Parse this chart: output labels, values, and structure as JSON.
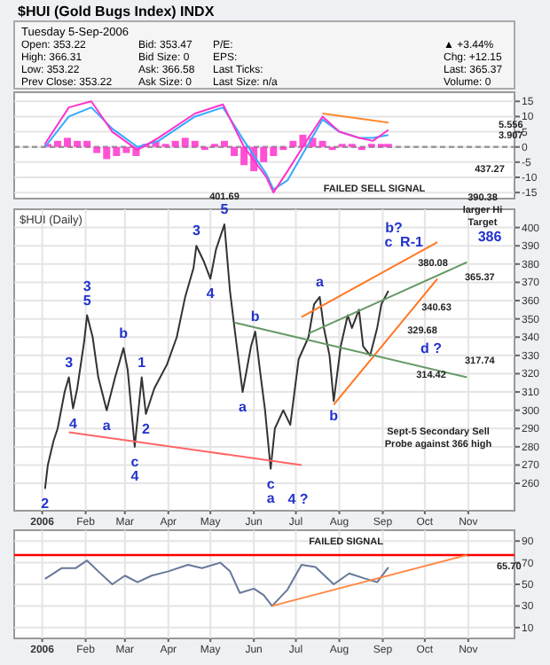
{
  "chart_data": [
    {
      "type": "other",
      "title": "$HUI (Gold Bugs Index) INDX",
      "annotations": [
        "Tuesday 5-Sep-2006",
        "Open: 353.22",
        "High: 366.31",
        "Low: 353.22",
        "Prev Close: 353.22",
        "Bid: 353.47",
        "Bid Size: 0",
        "Ask: 366.58",
        "Ask Size: 0",
        "P/E:",
        "EPS:",
        "Last Ticks:",
        "Last Size: n/a",
        "▲ +3.44%",
        "Chg: +12.15",
        "Last: 365.37",
        "Volume: 0"
      ]
    },
    {
      "type": "line",
      "xlim": [
        "2005-12-12",
        "2006-12-04"
      ],
      "ylim": [
        -17,
        18
      ],
      "yticks": [
        15,
        10,
        5,
        0,
        -5,
        -10,
        -15
      ],
      "tick_labels": "y",
      "grid": true,
      "ref_lines": [
        {
          "axis": "y",
          "value": 0,
          "color": "#999999",
          "line_style": "dashed"
        }
      ],
      "series": [
        {
          "type": "bar",
          "color": "#ff33cc",
          "x": [
            "2006-01-05",
            "2006-01-12",
            "2006-01-19",
            "2006-01-26",
            "2006-02-02",
            "2006-02-09",
            "2006-02-16",
            "2006-02-23",
            "2006-03-02",
            "2006-03-09",
            "2006-03-16",
            "2006-03-23",
            "2006-03-30",
            "2006-04-06",
            "2006-04-13",
            "2006-04-20",
            "2006-04-27",
            "2006-05-04",
            "2006-05-11",
            "2006-05-18",
            "2006-05-25",
            "2006-06-01",
            "2006-06-08",
            "2006-06-15",
            "2006-06-22",
            "2006-06-29",
            "2006-07-06",
            "2006-07-13",
            "2006-07-20",
            "2006-07-27",
            "2006-08-03",
            "2006-08-10",
            "2006-08-17",
            "2006-08-24",
            "2006-08-31",
            "2006-09-05"
          ],
          "values": [
            1,
            2,
            3,
            2,
            2,
            -2,
            -4,
            -3,
            -2,
            -3,
            1,
            2,
            1,
            2,
            3,
            2,
            -1,
            1,
            2,
            -3,
            -6,
            -8,
            -5,
            -3,
            -1,
            2,
            4,
            3,
            2,
            -1,
            1,
            1,
            -1,
            1,
            1,
            1
          ]
        },
        {
          "color": "#33aaff",
          "x": [
            "2006-01-03",
            "2006-01-20",
            "2006-02-05",
            "2006-02-20",
            "2006-03-10",
            "2006-03-25",
            "2006-04-20",
            "2006-05-10",
            "2006-05-25",
            "2006-06-10",
            "2006-06-15",
            "2006-06-25",
            "2006-07-10",
            "2006-07-20",
            "2006-08-01",
            "2006-08-15",
            "2006-08-25",
            "2006-09-05"
          ],
          "values": [
            0,
            10,
            13,
            6,
            0,
            2,
            10,
            13,
            2,
            -9,
            -14,
            -11,
            1,
            9,
            5,
            3,
            3,
            3.9
          ]
        },
        {
          "color": "#ff33cc",
          "x": [
            "2006-01-03",
            "2006-01-20",
            "2006-02-05",
            "2006-02-20",
            "2006-03-10",
            "2006-03-25",
            "2006-04-20",
            "2006-05-10",
            "2006-05-25",
            "2006-06-10",
            "2006-06-15",
            "2006-06-25",
            "2006-07-10",
            "2006-07-20",
            "2006-08-01",
            "2006-08-15",
            "2006-08-25",
            "2006-09-05"
          ],
          "values": [
            1,
            13,
            15,
            5,
            -1,
            3,
            11,
            14,
            0,
            -10,
            -15,
            -8,
            3,
            10,
            5,
            3,
            2,
            5.6
          ]
        },
        {
          "color": "#ff8833",
          "x": [
            "2006-07-20",
            "2006-09-05"
          ],
          "values": [
            11,
            8
          ]
        }
      ],
      "annotations": [
        "5.556",
        "3.907"
      ]
    },
    {
      "type": "line",
      "title": "$HUI (Daily)",
      "xlim": [
        "2005-12-12",
        "2006-12-04"
      ],
      "ylim": [
        245,
        410
      ],
      "yticks": [
        260,
        270,
        280,
        290,
        300,
        310,
        320,
        330,
        340,
        350,
        360,
        370,
        380,
        390,
        400
      ],
      "tick_labels": "xy",
      "grid": true,
      "xticks": [
        {
          "value": "2006-01-01",
          "label": "2006"
        },
        {
          "value": "2006-02-01",
          "label": "Feb"
        },
        {
          "value": "2006-03-01",
          "label": "Mar"
        },
        {
          "value": "2006-04-01",
          "label": "Apr"
        },
        {
          "value": "2006-05-01",
          "label": "May"
        },
        {
          "value": "2006-06-01",
          "label": "Jun"
        },
        {
          "value": "2006-07-01",
          "label": "Jul"
        },
        {
          "value": "2006-08-01",
          "label": "Aug"
        },
        {
          "value": "2006-09-01",
          "label": "Sep"
        },
        {
          "value": "2006-10-01",
          "label": "Oct"
        },
        {
          "value": "2006-11-01",
          "label": "Nov"
        }
      ],
      "series": [
        {
          "color": "#333333",
          "x": [
            "2006-01-03",
            "2006-01-05",
            "2006-01-09",
            "2006-01-12",
            "2006-01-17",
            "2006-01-20",
            "2006-01-23",
            "2006-01-26",
            "2006-01-31",
            "2006-02-02",
            "2006-02-06",
            "2006-02-10",
            "2006-02-16",
            "2006-02-22",
            "2006-02-28",
            "2006-03-03",
            "2006-03-08",
            "2006-03-13",
            "2006-03-16",
            "2006-03-22",
            "2006-03-31",
            "2006-04-07",
            "2006-04-13",
            "2006-04-19",
            "2006-04-21",
            "2006-04-26",
            "2006-05-01",
            "2006-05-05",
            "2006-05-11",
            "2006-05-15",
            "2006-05-19",
            "2006-05-24",
            "2006-05-30",
            "2006-06-02",
            "2006-06-06",
            "2006-06-09",
            "2006-06-13",
            "2006-06-16",
            "2006-06-22",
            "2006-06-27",
            "2006-07-03",
            "2006-07-10",
            "2006-07-14",
            "2006-07-18",
            "2006-07-21",
            "2006-07-25",
            "2006-07-28",
            "2006-08-02",
            "2006-08-07",
            "2006-08-10",
            "2006-08-15",
            "2006-08-18",
            "2006-08-23",
            "2006-08-28",
            "2006-08-31",
            "2006-09-05"
          ],
          "values": [
            257,
            270,
            283,
            290,
            310,
            318,
            301,
            312,
            338,
            352,
            340,
            318,
            300,
            318,
            334,
            322,
            280,
            318,
            298,
            312,
            325,
            340,
            362,
            378,
            390,
            382,
            372,
            388,
            401.69,
            365,
            340,
            310,
            335,
            343,
            318,
            300,
            268,
            290,
            300,
            292,
            328,
            340,
            358,
            362,
            345,
            330,
            305,
            335,
            352,
            345,
            355,
            335,
            330,
            345,
            358,
            365.37
          ]
        },
        {
          "color": "#ff7722",
          "x": [
            "2006-07-05",
            "2006-10-10"
          ],
          "values": [
            351,
            392
          ]
        },
        {
          "color": "#ff7722",
          "x": [
            "2006-07-28",
            "2006-10-10"
          ],
          "values": [
            303,
            372
          ]
        },
        {
          "color": "#ff6666",
          "x": [
            "2006-01-20",
            "2006-07-05"
          ],
          "values": [
            288,
            270
          ]
        },
        {
          "color": "#669966",
          "x": [
            "2006-07-10",
            "2006-10-31"
          ],
          "values": [
            342,
            381
          ]
        },
        {
          "color": "#669966",
          "x": [
            "2006-05-18",
            "2006-10-31"
          ],
          "values": [
            348,
            318
          ]
        }
      ],
      "annotations": [
        {
          "text": "2",
          "x": "2006-01-03",
          "y": 257
        },
        {
          "text": "3",
          "x": "2006-01-20",
          "y": 318
        },
        {
          "text": "4",
          "x": "2006-01-23",
          "y": 301
        },
        {
          "text": "5",
          "x": "2006-02-02",
          "y": 352
        },
        {
          "text": "3",
          "x": "2006-02-02",
          "y": 352
        },
        {
          "text": "a",
          "x": "2006-02-16",
          "y": 300
        },
        {
          "text": "b",
          "x": "2006-02-28",
          "y": 334
        },
        {
          "text": "c",
          "x": "2006-03-08",
          "y": 280
        },
        {
          "text": "4",
          "x": "2006-03-08",
          "y": 280
        },
        {
          "text": "1",
          "x": "2006-03-13",
          "y": 318
        },
        {
          "text": "2",
          "x": "2006-03-16",
          "y": 298
        },
        {
          "text": "3",
          "x": "2006-04-21",
          "y": 390
        },
        {
          "text": "4",
          "x": "2006-05-01",
          "y": 372
        },
        {
          "text": "5",
          "x": "2006-05-11",
          "y": 401.69
        },
        {
          "text": "401.69",
          "x": "2006-05-11",
          "y": 401.69
        },
        {
          "text": "a",
          "x": "2006-05-24",
          "y": 310
        },
        {
          "text": "b",
          "x": "2006-06-02",
          "y": 343
        },
        {
          "text": "c",
          "x": "2006-06-13",
          "y": 268
        },
        {
          "text": "a",
          "x": "2006-06-13",
          "y": 268
        },
        {
          "text": "a",
          "x": "2006-07-18",
          "y": 362
        },
        {
          "text": "b",
          "x": "2006-07-28",
          "y": 305
        },
        "4 ?",
        "FAILED SELL SIGNAL",
        "b?",
        "c",
        "R-1",
        "380.08",
        "340.63",
        "329.68",
        "d ?",
        "314.42",
        "437.27",
        "390.38",
        "larger Hi",
        "Target",
        "386",
        "Sept-5 Secondary Sell",
        "Probe against 366 high",
        "365.37",
        "317.74"
      ]
    },
    {
      "type": "line",
      "xlim": [
        "2005-12-12",
        "2006-12-04"
      ],
      "ylim": [
        0,
        100
      ],
      "yticks": [
        10,
        30,
        50,
        70,
        90
      ],
      "grid": true,
      "xticks": [
        {
          "value": "2006-01-01",
          "label": "2006"
        },
        {
          "value": "2006-02-01",
          "label": "Feb"
        },
        {
          "value": "2006-03-01",
          "label": "Mar"
        },
        {
          "value": "2006-04-01",
          "label": "Apr"
        },
        {
          "value": "2006-05-01",
          "label": "May"
        },
        {
          "value": "2006-06-01",
          "label": "Jun"
        },
        {
          "value": "2006-07-01",
          "label": "Jul"
        },
        {
          "value": "2006-08-01",
          "label": "Aug"
        },
        {
          "value": "2006-09-01",
          "label": "Sep"
        },
        {
          "value": "2006-10-01",
          "label": "Oct"
        },
        {
          "value": "2006-11-01",
          "label": "Nov"
        }
      ],
      "ref_lines": [
        {
          "axis": "y",
          "value": 77,
          "color": "#ff0000"
        }
      ],
      "series": [
        {
          "color": "#667799",
          "x": [
            "2006-01-03",
            "2006-01-15",
            "2006-01-25",
            "2006-02-02",
            "2006-02-10",
            "2006-02-20",
            "2006-03-01",
            "2006-03-10",
            "2006-03-20",
            "2006-04-01",
            "2006-04-15",
            "2006-04-25",
            "2006-05-08",
            "2006-05-15",
            "2006-05-22",
            "2006-06-01",
            "2006-06-08",
            "2006-06-14",
            "2006-06-25",
            "2006-07-05",
            "2006-07-15",
            "2006-07-28",
            "2006-08-08",
            "2006-08-20",
            "2006-08-28",
            "2006-09-05"
          ],
          "values": [
            55,
            65,
            65,
            72,
            62,
            50,
            58,
            52,
            58,
            62,
            68,
            65,
            70,
            62,
            42,
            46,
            40,
            30,
            45,
            68,
            66,
            50,
            60,
            55,
            52,
            65.7
          ]
        },
        {
          "color": "#ff8844",
          "x": [
            "2006-06-14",
            "2006-10-31"
          ],
          "values": [
            30,
            77
          ]
        }
      ],
      "annotations": [
        "FAILED SIGNAL",
        "65.70"
      ]
    }
  ]
}
